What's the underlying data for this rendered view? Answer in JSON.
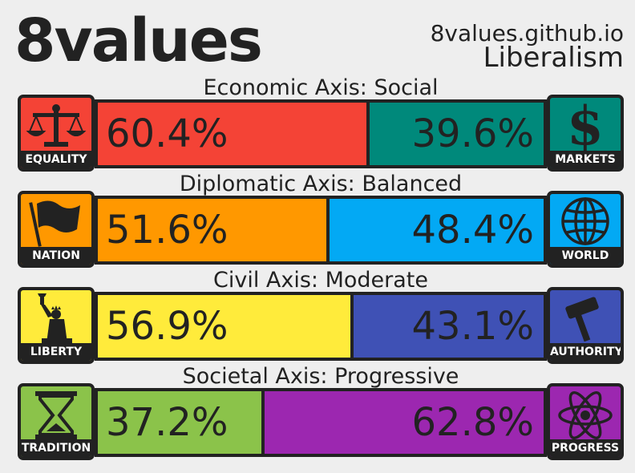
{
  "header": {
    "logo": "8values",
    "site": "8values.github.io",
    "ideology": "Liberalism"
  },
  "chart_data": {
    "type": "bar",
    "layout": "stacked-horizontal-100",
    "axes": [
      {
        "title": "Economic Axis: Social",
        "left": {
          "label": "EQUALITY",
          "value": 60.4,
          "text": "60.4%",
          "color": "#f44336",
          "icon": "scales-icon"
        },
        "right": {
          "label": "MARKETS",
          "value": 39.6,
          "text": "39.6%",
          "color": "#00897b",
          "icon": "dollar-icon"
        }
      },
      {
        "title": "Diplomatic Axis: Balanced",
        "left": {
          "label": "NATION",
          "value": 51.6,
          "text": "51.6%",
          "color": "#ff9800",
          "icon": "flag-icon"
        },
        "right": {
          "label": "WORLD",
          "value": 48.4,
          "text": "48.4%",
          "color": "#03a9f4",
          "icon": "globe-icon"
        }
      },
      {
        "title": "Civil Axis: Moderate",
        "left": {
          "label": "LIBERTY",
          "value": 56.9,
          "text": "56.9%",
          "color": "#ffeb3b",
          "icon": "statue-of-liberty-icon"
        },
        "right": {
          "label": "AUTHORITY",
          "value": 43.1,
          "text": "43.1%",
          "color": "#3f51b5",
          "icon": "gavel-icon"
        }
      },
      {
        "title": "Societal Axis: Progressive",
        "left": {
          "label": "TRADITION",
          "value": 37.2,
          "text": "37.2%",
          "color": "#8bc34a",
          "icon": "hourglass-icon"
        },
        "right": {
          "label": "PROGRESS",
          "value": 62.8,
          "text": "62.8%",
          "color": "#9c27b0",
          "icon": "atom-icon"
        }
      }
    ]
  }
}
